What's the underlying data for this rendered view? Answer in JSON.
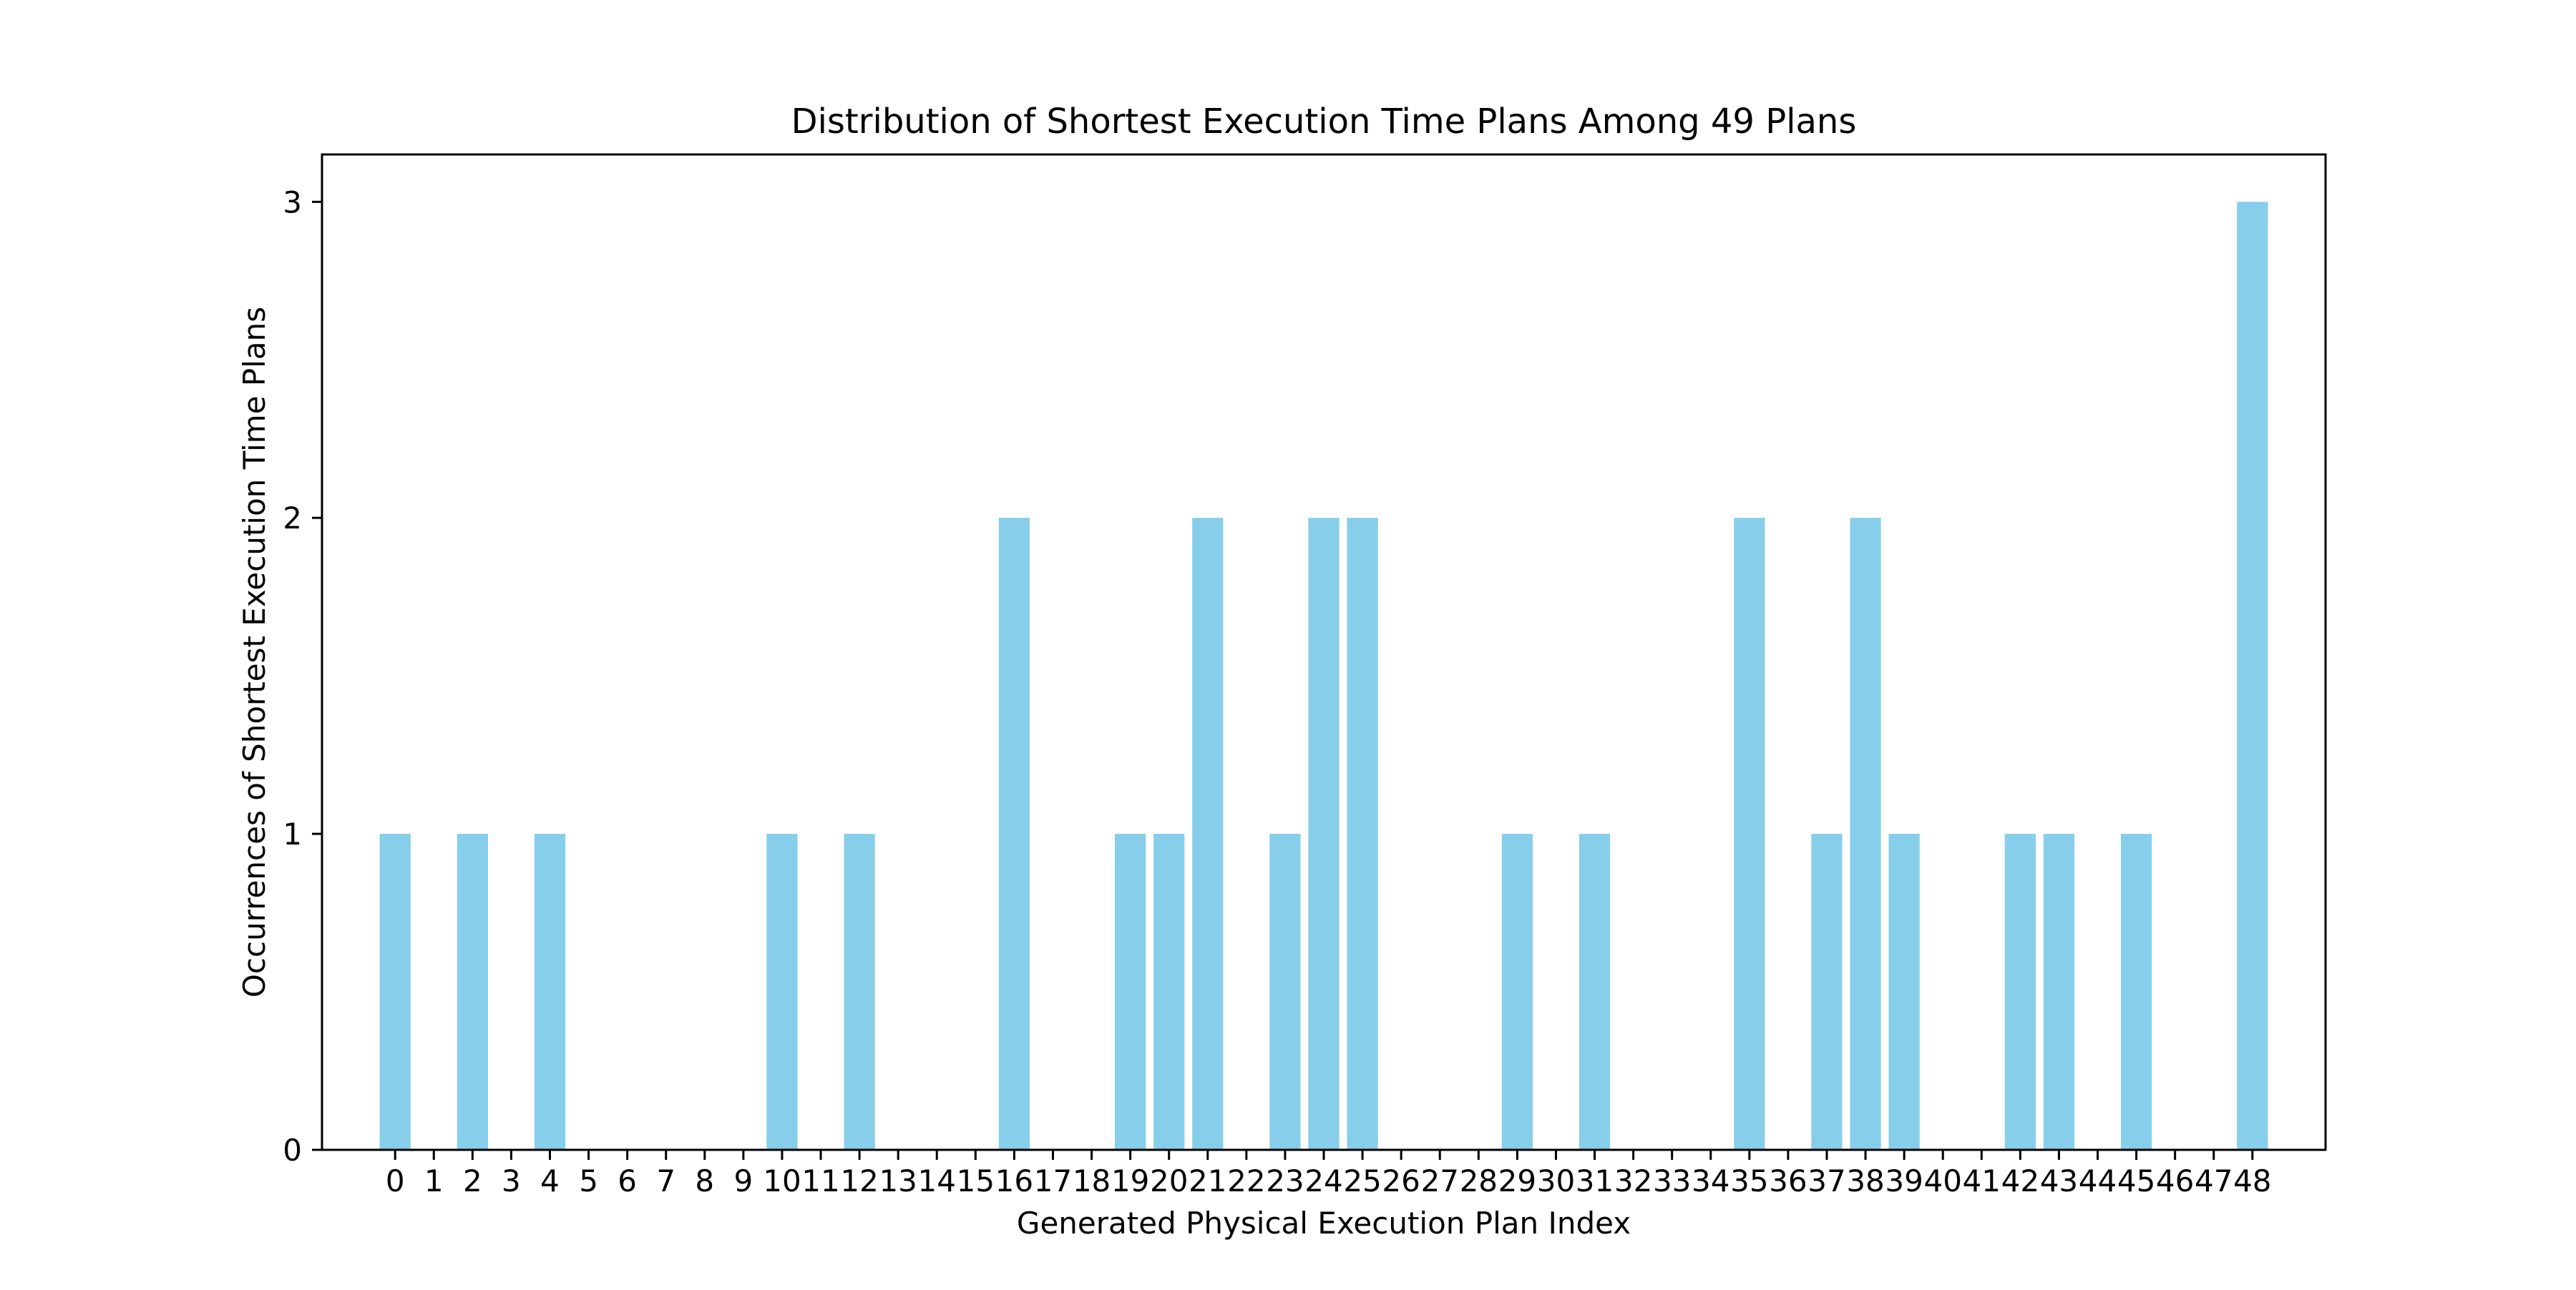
{
  "chart_data": {
    "type": "bar",
    "title": "Distribution of Shortest Execution Time Plans Among 49 Plans",
    "xlabel": "Generated Physical Execution Plan Index",
    "ylabel": "Occurrences of Shortest Execution Time Plans",
    "categories": [
      "0",
      "1",
      "2",
      "3",
      "4",
      "5",
      "6",
      "7",
      "8",
      "9",
      "10",
      "11",
      "12",
      "13",
      "14",
      "15",
      "16",
      "17",
      "18",
      "19",
      "20",
      "21",
      "22",
      "23",
      "24",
      "25",
      "26",
      "27",
      "28",
      "29",
      "30",
      "31",
      "32",
      "33",
      "34",
      "35",
      "36",
      "37",
      "38",
      "39",
      "40",
      "41",
      "42",
      "43",
      "44",
      "45",
      "46",
      "47",
      "48"
    ],
    "values": [
      1,
      0,
      1,
      0,
      1,
      0,
      0,
      0,
      0,
      0,
      1,
      0,
      1,
      0,
      0,
      0,
      2,
      0,
      0,
      1,
      1,
      2,
      0,
      1,
      2,
      2,
      0,
      0,
      0,
      1,
      0,
      1,
      0,
      0,
      0,
      2,
      0,
      1,
      2,
      1,
      0,
      0,
      1,
      1,
      0,
      1,
      0,
      0,
      3
    ],
    "ylim": [
      0,
      3.15
    ],
    "yticks": [
      "0",
      "1",
      "2",
      "3"
    ],
    "bar_color": "#87CEEB",
    "grid": false,
    "legend": "none"
  }
}
